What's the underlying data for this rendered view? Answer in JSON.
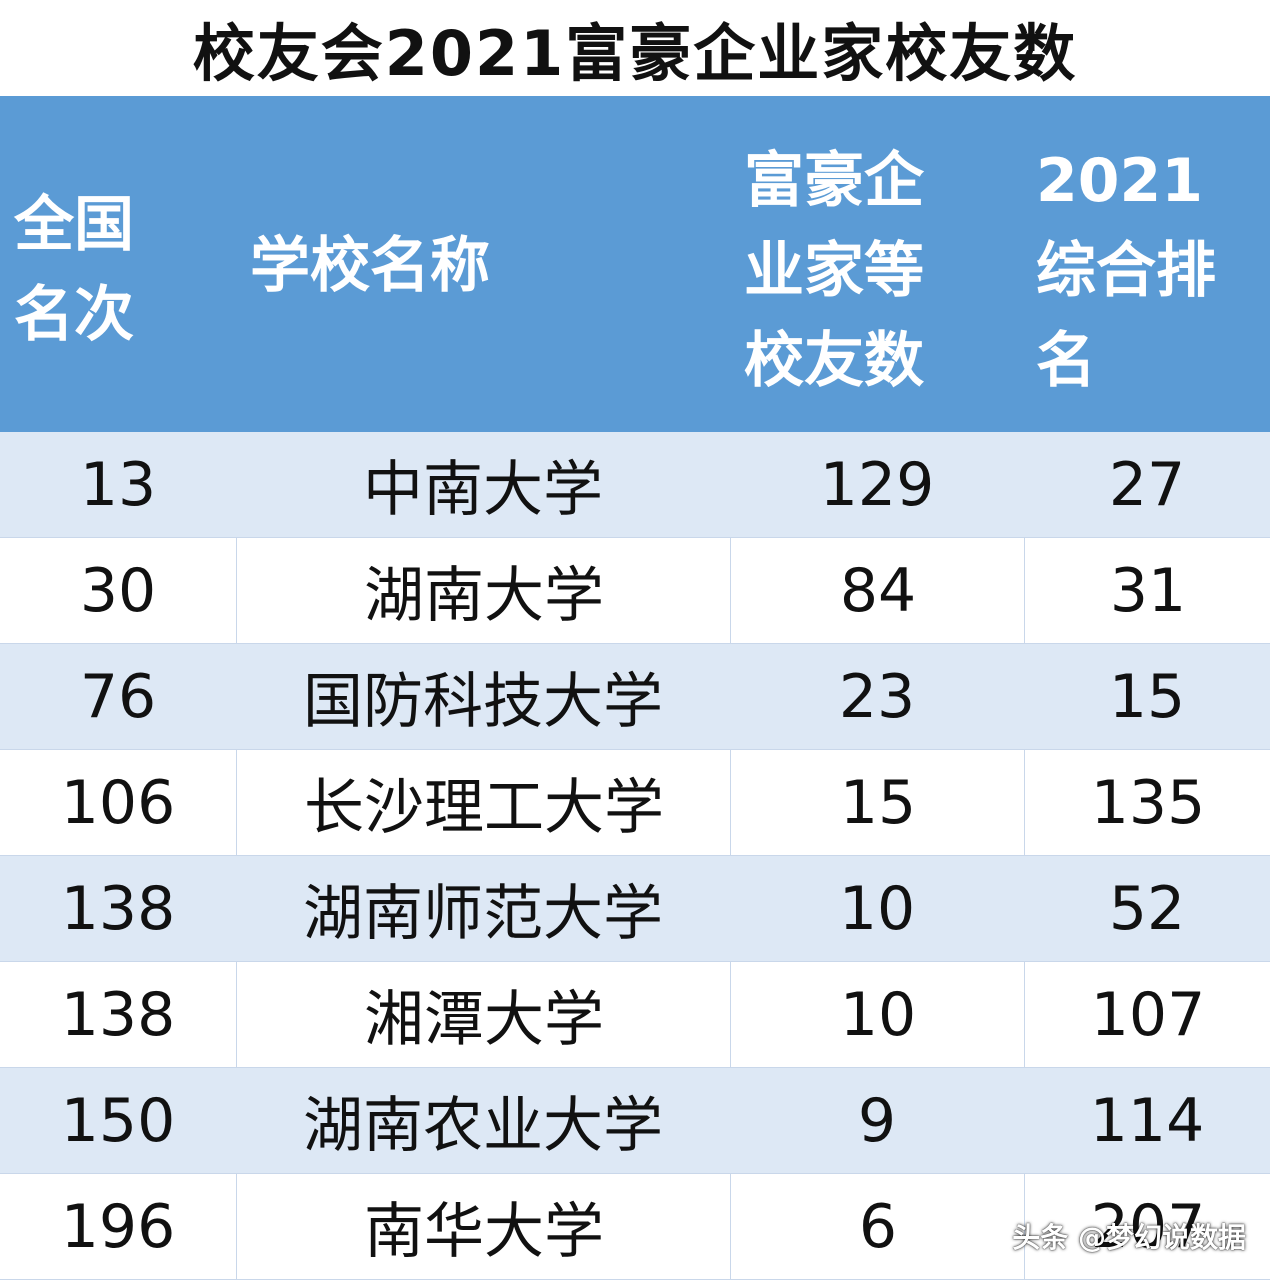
{
  "title": "校友会2021富豪企业家校友数",
  "headers": {
    "rank": "全国\n名次",
    "name": "学校名称",
    "count": "富豪企\n业家等\n校友数",
    "overall": "2021\n综合排\n名"
  },
  "rows": [
    {
      "rank": "13",
      "name": "中南大学",
      "count": "129",
      "overall": "27"
    },
    {
      "rank": "30",
      "name": "湖南大学",
      "count": "84",
      "overall": "31"
    },
    {
      "rank": "76",
      "name": "国防科技大学",
      "count": "23",
      "overall": "15"
    },
    {
      "rank": "106",
      "name": "长沙理工大学",
      "count": "15",
      "overall": "135"
    },
    {
      "rank": "138",
      "name": "湖南师范大学",
      "count": "10",
      "overall": "52"
    },
    {
      "rank": "138",
      "name": "湘潭大学",
      "count": "10",
      "overall": "107"
    },
    {
      "rank": "150",
      "name": "湖南农业大学",
      "count": "9",
      "overall": "114"
    },
    {
      "rank": "196",
      "name": "南华大学",
      "count": "6",
      "overall": "207"
    }
  ],
  "watermark": "头条 @梦幻说数据",
  "colors": {
    "header_bg": "#5b9bd5",
    "band_bg": "#dde8f5",
    "text": "#111111"
  }
}
